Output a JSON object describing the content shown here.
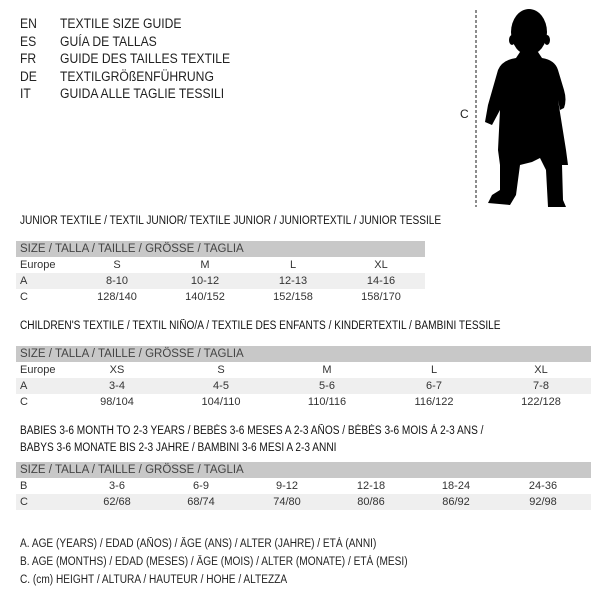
{
  "languages": [
    {
      "code": "EN",
      "title": "TEXTILE SIZE GUIDE"
    },
    {
      "code": "ES",
      "title": "GUÍA DE TALLAS"
    },
    {
      "code": "FR",
      "title": "GUIDE DES TAILLES TEXTILE"
    },
    {
      "code": "DE",
      "title": "TEXTILGRÖßENFÜHRUNG"
    },
    {
      "code": "IT",
      "title": "GUIDA ALLE TAGLIE TESSILI"
    }
  ],
  "figure": {
    "measure_label": "C"
  },
  "sections": [
    {
      "title": "JUNIOR TEXTILE / TEXTIL JUNIOR/ TEXTILE JUNIOR / JUNIORTEXTIL / JUNIOR TESSILE",
      "header": "SIZE / TALLA / TAILLE / GRÖSSE / TAGLIA",
      "rows": [
        {
          "label": "Europe",
          "cells": [
            "S",
            "M",
            "L",
            "XL"
          ]
        },
        {
          "label": "A",
          "cells": [
            "8-10",
            "10-12",
            "12-13",
            "14-16"
          ]
        },
        {
          "label": "C",
          "cells": [
            "128/140",
            "140/152",
            "152/158",
            "158/170"
          ]
        }
      ]
    },
    {
      "title": "CHILDREN'S TEXTILE / TEXTIL NIÑO/A / TEXTILE DES ENFANTS / KINDERTEXTIL / BAMBINI TESSILE",
      "header": "SIZE / TALLA / TAILLE / GRÖSSE / TAGLIA",
      "rows": [
        {
          "label": "Europe",
          "cells": [
            "XS",
            "S",
            "M",
            "L",
            "XL"
          ]
        },
        {
          "label": "A",
          "cells": [
            "3-4",
            "4-5",
            "5-6",
            "6-7",
            "7-8"
          ]
        },
        {
          "label": "C",
          "cells": [
            "98/104",
            "104/110",
            "110/116",
            "116/122",
            "122/128"
          ]
        }
      ]
    },
    {
      "title": "BABIES 3-6 MONTH TO 2-3 YEARS / BEBÉS 3-6 MESES A 2-3 AÑOS / BÉBÉS 3-6 MOIS À 2-3 ANS /",
      "title2": "BABYS 3-6 MONATE BIS 2-3 JAHRE / BAMBINI 3-6 MESI A 2-3 ANNI",
      "header": "SIZE / TALLA / TAILLE / GRÖSSE / TAGLIA",
      "rows": [
        {
          "label": "B",
          "cells": [
            "3-6",
            "6-9",
            "9-12",
            "12-18",
            "18-24",
            "24-36"
          ]
        },
        {
          "label": "C",
          "cells": [
            "62/68",
            "68/74",
            "74/80",
            "80/86",
            "86/92",
            "92/98"
          ]
        }
      ]
    }
  ],
  "legend": [
    "A. AGE (YEARS) / EDAD (AÑOS) / ÂGE (ANS) / ALTER (JAHRE) / ETÀ (ANNI)",
    "B. AGE (MONTHS) / EDAD (MESES) / ÂGE (MOIS) / ALTER (MONATE) / ETÀ (MESI)",
    "C. (cm) HEIGHT / ALTURA / HAUTEUR / HÖHE / ALTEZZA"
  ]
}
